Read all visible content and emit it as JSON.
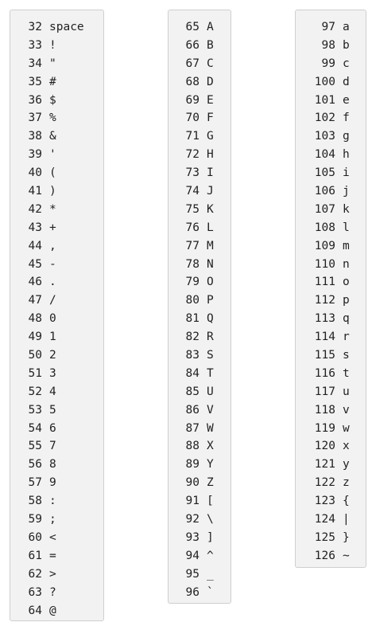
{
  "columns": [
    {
      "rows": [
        {
          "code": "32",
          "char": "space"
        },
        {
          "code": "33",
          "char": "!"
        },
        {
          "code": "34",
          "char": "\""
        },
        {
          "code": "35",
          "char": "#"
        },
        {
          "code": "36",
          "char": "$"
        },
        {
          "code": "37",
          "char": "%"
        },
        {
          "code": "38",
          "char": "&"
        },
        {
          "code": "39",
          "char": "'"
        },
        {
          "code": "40",
          "char": "("
        },
        {
          "code": "41",
          "char": ")"
        },
        {
          "code": "42",
          "char": "*"
        },
        {
          "code": "43",
          "char": "+"
        },
        {
          "code": "44",
          "char": ","
        },
        {
          "code": "45",
          "char": "-"
        },
        {
          "code": "46",
          "char": "."
        },
        {
          "code": "47",
          "char": "/"
        },
        {
          "code": "48",
          "char": "0"
        },
        {
          "code": "49",
          "char": "1"
        },
        {
          "code": "50",
          "char": "2"
        },
        {
          "code": "51",
          "char": "3"
        },
        {
          "code": "52",
          "char": "4"
        },
        {
          "code": "53",
          "char": "5"
        },
        {
          "code": "54",
          "char": "6"
        },
        {
          "code": "55",
          "char": "7"
        },
        {
          "code": "56",
          "char": "8"
        },
        {
          "code": "57",
          "char": "9"
        },
        {
          "code": "58",
          "char": ":"
        },
        {
          "code": "59",
          "char": ";"
        },
        {
          "code": "60",
          "char": "<"
        },
        {
          "code": "61",
          "char": "="
        },
        {
          "code": "62",
          "char": ">"
        },
        {
          "code": "63",
          "char": "?"
        },
        {
          "code": "64",
          "char": "@"
        }
      ]
    },
    {
      "rows": [
        {
          "code": "65",
          "char": "A"
        },
        {
          "code": "66",
          "char": "B"
        },
        {
          "code": "67",
          "char": "C"
        },
        {
          "code": "68",
          "char": "D"
        },
        {
          "code": "69",
          "char": "E"
        },
        {
          "code": "70",
          "char": "F"
        },
        {
          "code": "71",
          "char": "G"
        },
        {
          "code": "72",
          "char": "H"
        },
        {
          "code": "73",
          "char": "I"
        },
        {
          "code": "74",
          "char": "J"
        },
        {
          "code": "75",
          "char": "K"
        },
        {
          "code": "76",
          "char": "L"
        },
        {
          "code": "77",
          "char": "M"
        },
        {
          "code": "78",
          "char": "N"
        },
        {
          "code": "79",
          "char": "O"
        },
        {
          "code": "80",
          "char": "P"
        },
        {
          "code": "81",
          "char": "Q"
        },
        {
          "code": "82",
          "char": "R"
        },
        {
          "code": "83",
          "char": "S"
        },
        {
          "code": "84",
          "char": "T"
        },
        {
          "code": "85",
          "char": "U"
        },
        {
          "code": "86",
          "char": "V"
        },
        {
          "code": "87",
          "char": "W"
        },
        {
          "code": "88",
          "char": "X"
        },
        {
          "code": "89",
          "char": "Y"
        },
        {
          "code": "90",
          "char": "Z"
        },
        {
          "code": "91",
          "char": "["
        },
        {
          "code": "92",
          "char": "\\"
        },
        {
          "code": "93",
          "char": "]"
        },
        {
          "code": "94",
          "char": "^"
        },
        {
          "code": "95",
          "char": "_"
        },
        {
          "code": "96",
          "char": "`"
        }
      ]
    },
    {
      "rows": [
        {
          "code": "97",
          "char": "a"
        },
        {
          "code": "98",
          "char": "b"
        },
        {
          "code": "99",
          "char": "c"
        },
        {
          "code": "100",
          "char": "d"
        },
        {
          "code": "101",
          "char": "e"
        },
        {
          "code": "102",
          "char": "f"
        },
        {
          "code": "103",
          "char": "g"
        },
        {
          "code": "104",
          "char": "h"
        },
        {
          "code": "105",
          "char": "i"
        },
        {
          "code": "106",
          "char": "j"
        },
        {
          "code": "107",
          "char": "k"
        },
        {
          "code": "108",
          "char": "l"
        },
        {
          "code": "109",
          "char": "m"
        },
        {
          "code": "110",
          "char": "n"
        },
        {
          "code": "111",
          "char": "o"
        },
        {
          "code": "112",
          "char": "p"
        },
        {
          "code": "113",
          "char": "q"
        },
        {
          "code": "114",
          "char": "r"
        },
        {
          "code": "115",
          "char": "s"
        },
        {
          "code": "116",
          "char": "t"
        },
        {
          "code": "117",
          "char": "u"
        },
        {
          "code": "118",
          "char": "v"
        },
        {
          "code": "119",
          "char": "w"
        },
        {
          "code": "120",
          "char": "x"
        },
        {
          "code": "121",
          "char": "y"
        },
        {
          "code": "122",
          "char": "z"
        },
        {
          "code": "123",
          "char": "{"
        },
        {
          "code": "124",
          "char": "|"
        },
        {
          "code": "125",
          "char": "}"
        },
        {
          "code": "126",
          "char": "~"
        }
      ]
    }
  ]
}
